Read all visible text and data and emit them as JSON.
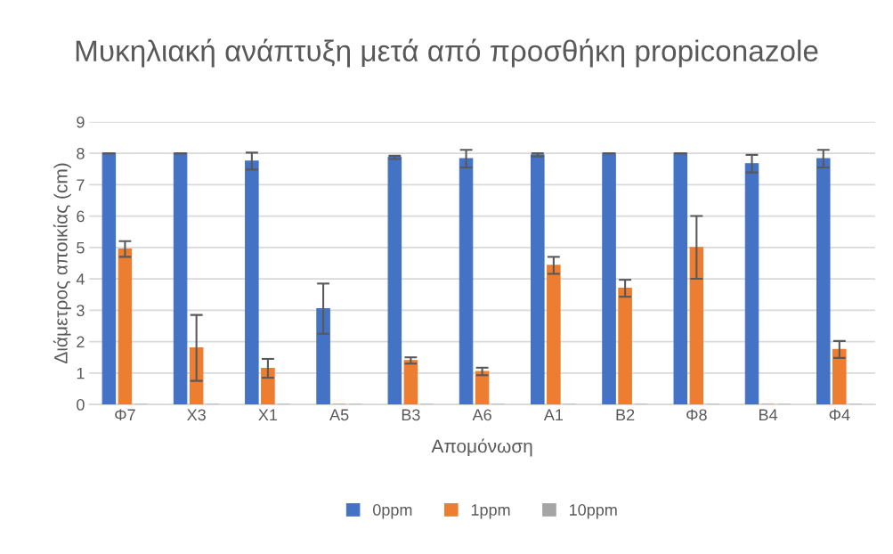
{
  "chart_data": {
    "type": "bar",
    "title": "Μυκηλιακή ανάπτυξη μετά από προσθήκη propiconazole",
    "xlabel": "Απομόνωση",
    "ylabel": "Διάμετρος αποικίας (cm)",
    "categories": [
      "Φ7",
      "Χ3",
      "Χ1",
      "Α5",
      "Β3",
      "Α6",
      "Α1",
      "Β2",
      "Φ8",
      "Β4",
      "Φ4"
    ],
    "series": [
      {
        "name": "0ppm",
        "color": "#4472c4",
        "values": [
          8,
          8,
          7.75,
          3.05,
          7.87,
          7.83,
          7.95,
          8,
          8,
          7.67,
          7.83
        ],
        "errors": [
          0,
          0,
          0.27,
          0.8,
          0.05,
          0.28,
          0.05,
          0,
          0,
          0.28,
          0.28
        ]
      },
      {
        "name": "1ppm",
        "color": "#ed7d31",
        "values": [
          4.95,
          1.8,
          1.15,
          0,
          1.4,
          1.05,
          4.43,
          3.7,
          5,
          0,
          1.75
        ],
        "errors": [
          0.25,
          1.05,
          0.3,
          null,
          0.1,
          0.12,
          0.27,
          0.27,
          1,
          null,
          0.27
        ]
      },
      {
        "name": "10ppm",
        "color": "#a5a5a5",
        "values": [
          0,
          0,
          0,
          0,
          0,
          0,
          0,
          0,
          0,
          0,
          0
        ]
      }
    ],
    "ylim": [
      0,
      9
    ],
    "yticks": [
      0,
      1,
      2,
      3,
      4,
      5,
      6,
      7,
      8,
      9
    ],
    "grid": "y",
    "legend": "bottom"
  }
}
